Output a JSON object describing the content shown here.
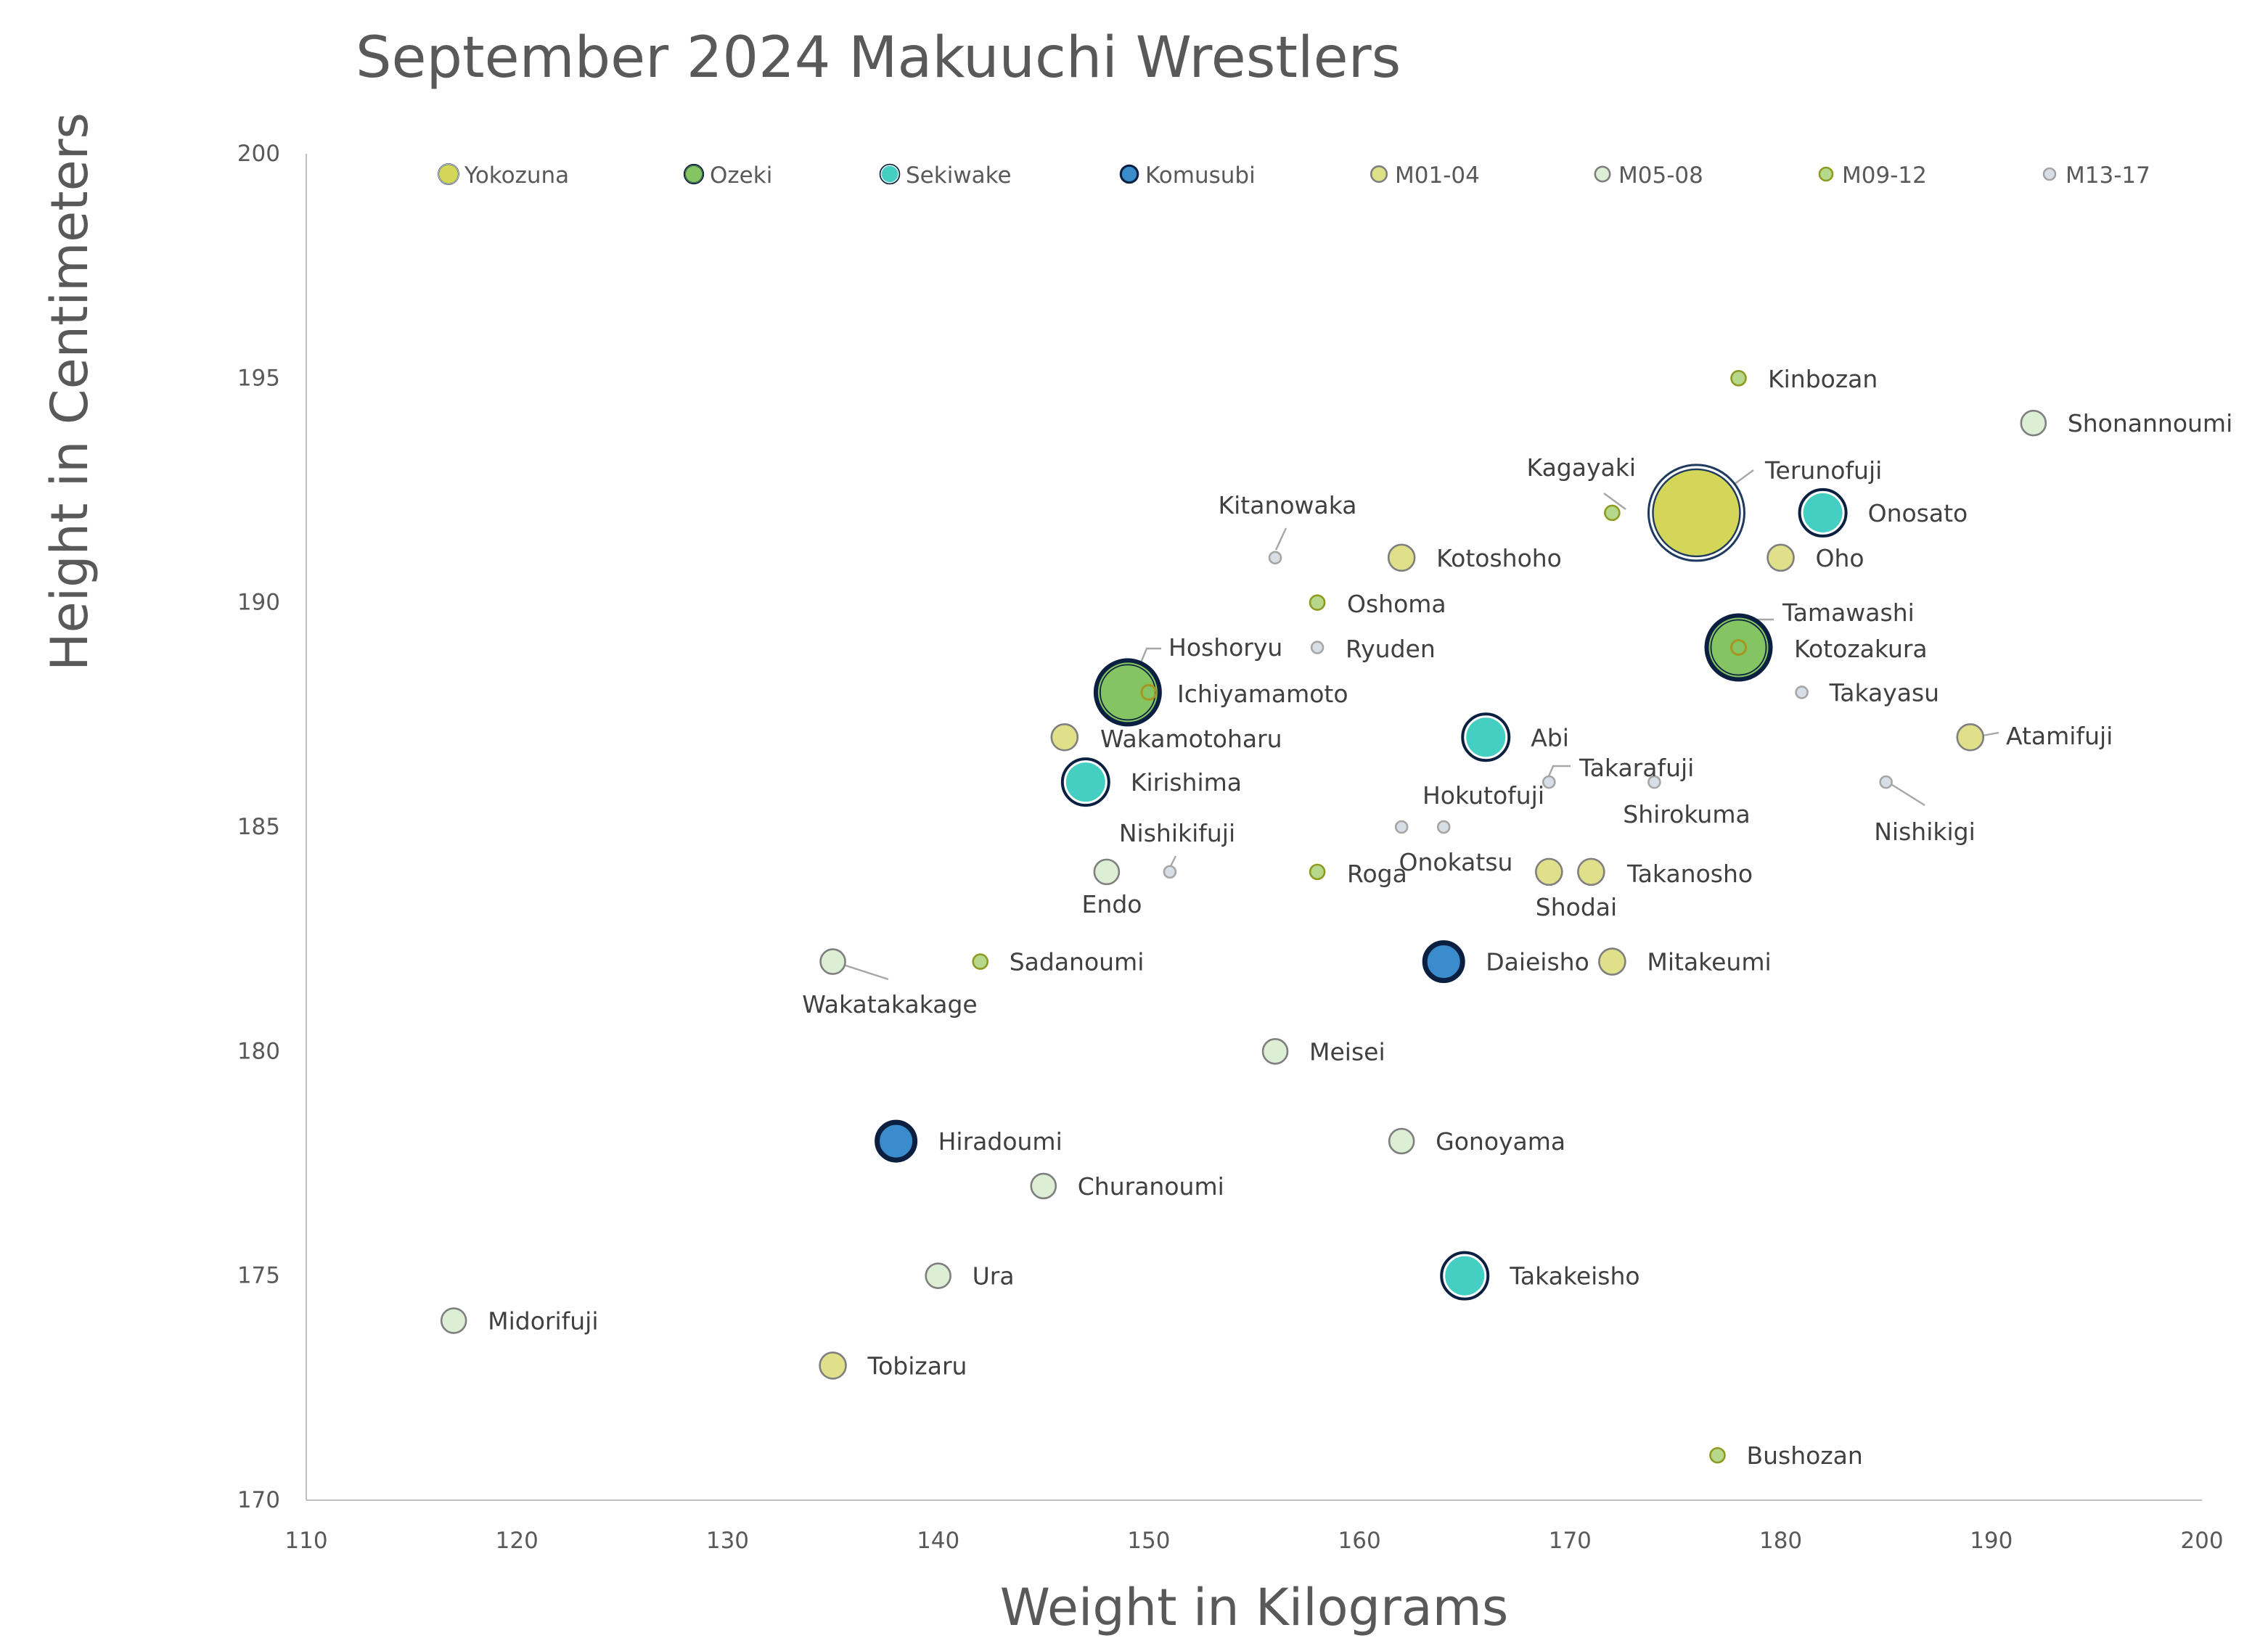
{
  "chart_data": {
    "type": "scatter",
    "title": "September 2024 Makuuchi Wrestlers",
    "xlabel": "Weight in Kilograms",
    "ylabel": "Height in Centimeters",
    "xlim": [
      110,
      200
    ],
    "ylim": [
      170,
      200
    ],
    "xticks": [
      110,
      120,
      130,
      140,
      150,
      160,
      170,
      180,
      190,
      200
    ],
    "yticks": [
      170,
      175,
      180,
      185,
      190,
      195,
      200
    ],
    "grid": false,
    "legend_placement": "top",
    "legend": [
      "Yokozuna",
      "Ozeki",
      "Sekiwake",
      "Komusubi",
      "M01-04",
      "M05-08",
      "M09-12",
      "M13-17"
    ],
    "rank_colors": {
      "Yokozuna": "#d4d65a",
      "Ozeki": "#84c462",
      "Sekiwake": "#45cfc3",
      "Komusubi": "#3a8ccc",
      "M01-04": "#e0e08a",
      "M05-08": "#dcefd4",
      "M09-12": "#b5d88a",
      "M13-17": "#d8dee6"
    },
    "points": [
      {
        "name": "Terunofuji",
        "weight": 176,
        "height": 192,
        "rank": "Yokozuna"
      },
      {
        "name": "Hoshoryu",
        "weight": 149,
        "height": 188,
        "rank": "Ozeki"
      },
      {
        "name": "Kotozakura",
        "weight": 178,
        "height": 189,
        "rank": "Ozeki"
      },
      {
        "name": "Onosato",
        "weight": 182,
        "height": 192,
        "rank": "Sekiwake"
      },
      {
        "name": "Abi",
        "weight": 166,
        "height": 187,
        "rank": "Sekiwake"
      },
      {
        "name": "Kirishima",
        "weight": 147,
        "height": 186,
        "rank": "Sekiwake"
      },
      {
        "name": "Takakeisho",
        "weight": 165,
        "height": 175,
        "rank": "Sekiwake"
      },
      {
        "name": "Daieisho",
        "weight": 164,
        "height": 182,
        "rank": "Komusubi"
      },
      {
        "name": "Hiradoumi",
        "weight": 138,
        "height": 178,
        "rank": "Komusubi"
      },
      {
        "name": "Kotoshoho",
        "weight": 162,
        "height": 191,
        "rank": "M01-04"
      },
      {
        "name": "Oho",
        "weight": 180,
        "height": 191,
        "rank": "M01-04"
      },
      {
        "name": "Wakamotoharu",
        "weight": 146,
        "height": 187,
        "rank": "M01-04"
      },
      {
        "name": "Atamifuji",
        "weight": 189,
        "height": 187,
        "rank": "M01-04"
      },
      {
        "name": "Shodai",
        "weight": 169,
        "height": 184,
        "rank": "M01-04"
      },
      {
        "name": "Takanosho",
        "weight": 171,
        "height": 184,
        "rank": "M01-04"
      },
      {
        "name": "Mitakeumi",
        "weight": 172,
        "height": 182,
        "rank": "M01-04"
      },
      {
        "name": "Tobizaru",
        "weight": 135,
        "height": 173,
        "rank": "M01-04"
      },
      {
        "name": "Shonannoumi",
        "weight": 192,
        "height": 194,
        "rank": "M05-08"
      },
      {
        "name": "Endo",
        "weight": 148,
        "height": 184,
        "rank": "M05-08"
      },
      {
        "name": "Wakatakakage",
        "weight": 135,
        "height": 182,
        "rank": "M05-08"
      },
      {
        "name": "Meisei",
        "weight": 156,
        "height": 180,
        "rank": "M05-08"
      },
      {
        "name": "Gonoyama",
        "weight": 162,
        "height": 178,
        "rank": "M05-08"
      },
      {
        "name": "Churanoumi",
        "weight": 145,
        "height": 177,
        "rank": "M05-08"
      },
      {
        "name": "Ura",
        "weight": 140,
        "height": 175,
        "rank": "M05-08"
      },
      {
        "name": "Midorifuji",
        "weight": 117,
        "height": 174,
        "rank": "M05-08"
      },
      {
        "name": "Kinbozan",
        "weight": 178,
        "height": 195,
        "rank": "M09-12"
      },
      {
        "name": "Kagayaki",
        "weight": 172,
        "height": 192,
        "rank": "M09-12"
      },
      {
        "name": "Oshoma",
        "weight": 158,
        "height": 190,
        "rank": "M09-12"
      },
      {
        "name": "Tamawashi",
        "weight": 178,
        "height": 189,
        "rank": "M09-12"
      },
      {
        "name": "Ichiyamamoto",
        "weight": 150,
        "height": 188,
        "rank": "M09-12"
      },
      {
        "name": "Roga",
        "weight": 158,
        "height": 184,
        "rank": "M09-12"
      },
      {
        "name": "Sadanoumi",
        "weight": 142,
        "height": 182,
        "rank": "M09-12"
      },
      {
        "name": "Bushozan",
        "weight": 177,
        "height": 171,
        "rank": "M09-12"
      },
      {
        "name": "Kitanowaka",
        "weight": 156,
        "height": 191,
        "rank": "M13-17"
      },
      {
        "name": "Ryuden",
        "weight": 158,
        "height": 189,
        "rank": "M13-17"
      },
      {
        "name": "Takayasu",
        "weight": 181,
        "height": 188,
        "rank": "M13-17"
      },
      {
        "name": "Takarafuji",
        "weight": 169,
        "height": 186,
        "rank": "M13-17"
      },
      {
        "name": "Shirokuma",
        "weight": 174,
        "height": 186,
        "rank": "M13-17"
      },
      {
        "name": "Nishikigi",
        "weight": 185,
        "height": 186,
        "rank": "M13-17"
      },
      {
        "name": "Hokutofuji",
        "weight": 162,
        "height": 185,
        "rank": "M13-17"
      },
      {
        "name": "Onokatsu",
        "weight": 164,
        "height": 185,
        "rank": "M13-17"
      },
      {
        "name": "Nishikifuji",
        "weight": 151,
        "height": 184,
        "rank": "M13-17"
      }
    ]
  }
}
